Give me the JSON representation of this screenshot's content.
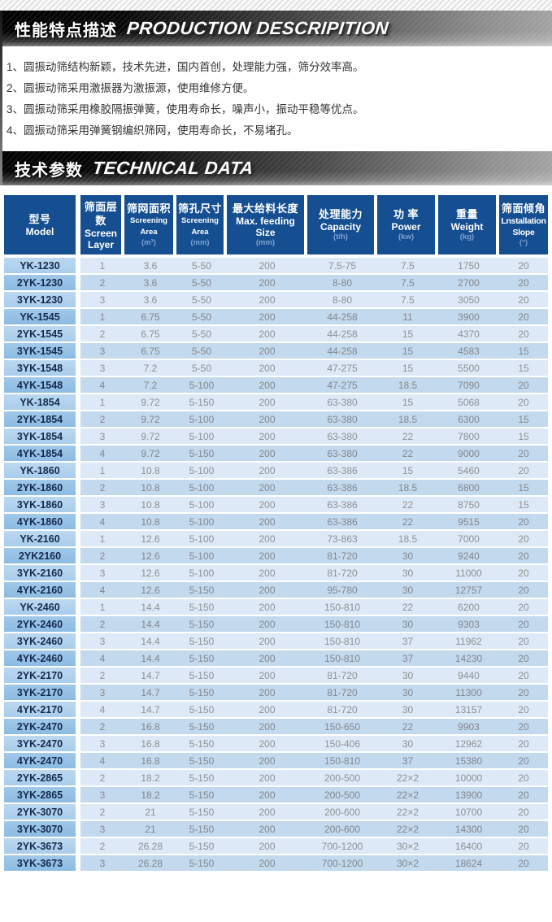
{
  "section1": {
    "title_cn": "性能特点描述",
    "title_en": "PRODUCTION DESCRIPITION"
  },
  "features": [
    "1、圆振动筛结构新颖，技术先进，国内首创，处理能力强，筛分效率高。",
    "2、圆振动筛采用激振器为激振源，使用维修方便。",
    "3、圆振动筛采用橡胶隔振弹簧，使用寿命长，噪声小，振动平稳等优点。",
    "4、圆振动筛采用弹簧钢编织筛网，使用寿命长，不易堵孔。"
  ],
  "section2": {
    "title_cn": "技术参数",
    "title_en": "TECHNICAL DATA"
  },
  "colors": {
    "header_blue": "#154f92",
    "unit_text": "#7ea2cf",
    "model_text": "#15294e",
    "data_text": "#8d9095",
    "row_odd": "#dde9f6",
    "row_even": "#c3d9ee",
    "model_cell_odd": "#b2d3ee",
    "model_cell_even": "#96c1e6",
    "banner_dark": "#000000",
    "banner_light": "#a2a2a2"
  },
  "table": {
    "columns": [
      {
        "cn": "型号",
        "en": [
          "Model"
        ],
        "unit": ""
      },
      {
        "cn": "筛面层数",
        "en": [
          "Screen",
          "Layer"
        ],
        "unit": ""
      },
      {
        "cn": "筛网面积",
        "en": [
          "Screening Area"
        ],
        "unit": "(m³)"
      },
      {
        "cn": "筛孔尺寸",
        "en": [
          "Screening Area"
        ],
        "unit": "(mm)"
      },
      {
        "cn": "最大给料长度",
        "en": [
          "Max. feeding",
          "Size"
        ],
        "unit": "(mm)"
      },
      {
        "cn": "处理能力",
        "en": [
          "Capacity"
        ],
        "unit": "(t/h)"
      },
      {
        "cn": "功 率",
        "en": [
          "Power"
        ],
        "unit": "(kw)"
      },
      {
        "cn": "重量",
        "en": [
          "Weight"
        ],
        "unit": "(kg)"
      },
      {
        "cn": "筛面倾角",
        "en": [
          "Lnstallation",
          "Slope"
        ],
        "unit": "(°)"
      }
    ],
    "rows": [
      [
        "YK-1230",
        "1",
        "3.6",
        "5-50",
        "200",
        "7.5-75",
        "7.5",
        "1750",
        "20"
      ],
      [
        "2YK-1230",
        "2",
        "3.6",
        "5-50",
        "200",
        "8-80",
        "7.5",
        "2700",
        "20"
      ],
      [
        "3YK-1230",
        "3",
        "3.6",
        "5-50",
        "200",
        "8-80",
        "7.5",
        "3050",
        "20"
      ],
      [
        "YK-1545",
        "1",
        "6.75",
        "5-50",
        "200",
        "44-258",
        "11",
        "3900",
        "20"
      ],
      [
        "2YK-1545",
        "2",
        "6.75",
        "5-50",
        "200",
        "44-258",
        "15",
        "4370",
        "20"
      ],
      [
        "3YK-1545",
        "3",
        "6.75",
        "5-50",
        "200",
        "44-258",
        "15",
        "4583",
        "15"
      ],
      [
        "3YK-1548",
        "3",
        "7.2",
        "5-50",
        "200",
        "47-275",
        "15",
        "5500",
        "15"
      ],
      [
        "4YK-1548",
        "4",
        "7.2",
        "5-100",
        "200",
        "47-275",
        "18.5",
        "7090",
        "20"
      ],
      [
        "YK-1854",
        "1",
        "9.72",
        "5-150",
        "200",
        "63-380",
        "15",
        "5068",
        "20"
      ],
      [
        "2YK-1854",
        "2",
        "9.72",
        "5-100",
        "200",
        "63-380",
        "18.5",
        "6300",
        "15"
      ],
      [
        "3YK-1854",
        "3",
        "9.72",
        "5-100",
        "200",
        "63-380",
        "22",
        "7800",
        "15"
      ],
      [
        "4YK-1854",
        "4",
        "9.72",
        "5-150",
        "200",
        "63-380",
        "22",
        "9000",
        "20"
      ],
      [
        "YK-1860",
        "1",
        "10.8",
        "5-100",
        "200",
        "63-386",
        "15",
        "5460",
        "20"
      ],
      [
        "2YK-1860",
        "2",
        "10.8",
        "5-100",
        "200",
        "63-386",
        "18.5",
        "6800",
        "15"
      ],
      [
        "3YK-1860",
        "3",
        "10.8",
        "5-100",
        "200",
        "63-386",
        "22",
        "8750",
        "15"
      ],
      [
        "4YK-1860",
        "4",
        "10.8",
        "5-100",
        "200",
        "63-386",
        "22",
        "9515",
        "20"
      ],
      [
        "YK-2160",
        "1",
        "12.6",
        "5-100",
        "200",
        "73-863",
        "18.5",
        "7000",
        "20"
      ],
      [
        "2YK2160",
        "2",
        "12.6",
        "5-100",
        "200",
        "81-720",
        "30",
        "9240",
        "20"
      ],
      [
        "3YK-2160",
        "3",
        "12.6",
        "5-100",
        "200",
        "81-720",
        "30",
        "11000",
        "20"
      ],
      [
        "4YK-2160",
        "4",
        "12.6",
        "5-150",
        "200",
        "95-780",
        "30",
        "12757",
        "20"
      ],
      [
        "YK-2460",
        "1",
        "14.4",
        "5-150",
        "200",
        "150-810",
        "22",
        "6200",
        "20"
      ],
      [
        "2YK-2460",
        "2",
        "14.4",
        "5-150",
        "200",
        "150-810",
        "30",
        "9303",
        "20"
      ],
      [
        "3YK-2460",
        "3",
        "14.4",
        "5-150",
        "200",
        "150-810",
        "37",
        "11962",
        "20"
      ],
      [
        "4YK-2460",
        "4",
        "14.4",
        "5-150",
        "200",
        "150-810",
        "37",
        "14230",
        "20"
      ],
      [
        "2YK-2170",
        "2",
        "14.7",
        "5-150",
        "200",
        "81-720",
        "30",
        "9440",
        "20"
      ],
      [
        "3YK-2170",
        "3",
        "14.7",
        "5-150",
        "200",
        "81-720",
        "30",
        "11300",
        "20"
      ],
      [
        "4YK-2170",
        "4",
        "14.7",
        "5-150",
        "200",
        "81-720",
        "30",
        "13157",
        "20"
      ],
      [
        "2YK-2470",
        "2",
        "16.8",
        "5-150",
        "200",
        "150-650",
        "22",
        "9903",
        "20"
      ],
      [
        "3YK-2470",
        "3",
        "16.8",
        "5-150",
        "200",
        "150-406",
        "30",
        "12962",
        "20"
      ],
      [
        "4YK-2470",
        "4",
        "16.8",
        "5-150",
        "200",
        "150-810",
        "37",
        "15380",
        "20"
      ],
      [
        "2YK-2865",
        "2",
        "18.2",
        "5-150",
        "200",
        "200-500",
        "22×2",
        "10000",
        "20"
      ],
      [
        "3YK-2865",
        "3",
        "18.2",
        "5-150",
        "200",
        "200-500",
        "22×2",
        "13900",
        "20"
      ],
      [
        "2YK-3070",
        "2",
        "21",
        "5-150",
        "200",
        "200-600",
        "22×2",
        "10700",
        "20"
      ],
      [
        "3YK-3070",
        "3",
        "21",
        "5-150",
        "200",
        "200-600",
        "22×2",
        "14300",
        "20"
      ],
      [
        "2YK-3673",
        "2",
        "26.28",
        "5-150",
        "200",
        "700-1200",
        "30×2",
        "16400",
        "20"
      ],
      [
        "3YK-3673",
        "3",
        "26.28",
        "5-150",
        "200",
        "700-1200",
        "30×2",
        "18624",
        "20"
      ]
    ]
  }
}
